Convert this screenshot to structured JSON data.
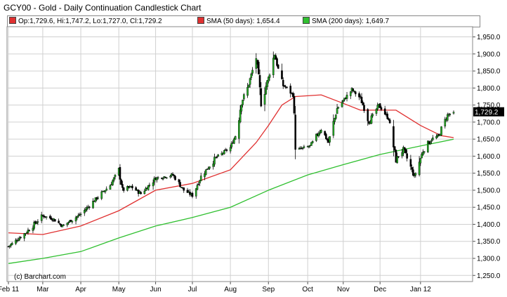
{
  "chart_data": {
    "type": "candlestick",
    "title": "GCY00 - Gold - Daily Continuation Candlestick Chart",
    "ohlc_label": "Op:1,729.6, Hi:1,747.2, Lo:1,727.0, Cl:1,729.2",
    "last_price_label": "1,729.2",
    "last_close": 1729.2,
    "xlabel": "",
    "ylabel": "",
    "ylim": [
      1232,
      1980
    ],
    "y_ticks": [
      {
        "value": 1250,
        "label": "1,250.0"
      },
      {
        "value": 1300,
        "label": "1,300.0"
      },
      {
        "value": 1350,
        "label": "1,350.0"
      },
      {
        "value": 1400,
        "label": "1,400.0"
      },
      {
        "value": 1450,
        "label": "1,450.0"
      },
      {
        "value": 1500,
        "label": "1,500.0"
      },
      {
        "value": 1550,
        "label": "1,550.0"
      },
      {
        "value": 1600,
        "label": "1,600.0"
      },
      {
        "value": 1650,
        "label": "1,650.0"
      },
      {
        "value": 1700,
        "label": "1,700.0"
      },
      {
        "value": 1750,
        "label": "1,750.0"
      },
      {
        "value": 1800,
        "label": "1,800.0"
      },
      {
        "value": 1850,
        "label": "1,850.0"
      },
      {
        "value": 1900,
        "label": "1,900.0"
      },
      {
        "value": 1950,
        "label": "1,950.0"
      }
    ],
    "x_ticks": [
      {
        "date": "2011-02-01",
        "label": "Feb 11"
      },
      {
        "date": "2011-03-01",
        "label": "Mar"
      },
      {
        "date": "2011-04-01",
        "label": "Apr"
      },
      {
        "date": "2011-05-02",
        "label": "May"
      },
      {
        "date": "2011-06-01",
        "label": "Jun"
      },
      {
        "date": "2011-07-01",
        "label": "Jul"
      },
      {
        "date": "2011-08-01",
        "label": "Aug"
      },
      {
        "date": "2011-09-01",
        "label": "Sep"
      },
      {
        "date": "2011-10-03",
        "label": "Oct"
      },
      {
        "date": "2011-11-01",
        "label": "Nov"
      },
      {
        "date": "2011-12-01",
        "label": "Dec"
      },
      {
        "date": "2012-01-03",
        "label": "Jan 12"
      }
    ],
    "price_path": [
      {
        "date": "2011-02-01",
        "close": 1335
      },
      {
        "date": "2011-02-15",
        "close": 1375
      },
      {
        "date": "2011-03-01",
        "close": 1425
      },
      {
        "date": "2011-03-10",
        "close": 1415
      },
      {
        "date": "2011-03-17",
        "close": 1395
      },
      {
        "date": "2011-04-01",
        "close": 1430
      },
      {
        "date": "2011-04-15",
        "close": 1480
      },
      {
        "date": "2011-04-25",
        "close": 1515
      },
      {
        "date": "2011-05-02",
        "close": 1560
      },
      {
        "date": "2011-05-05",
        "close": 1500
      },
      {
        "date": "2011-05-12",
        "close": 1510
      },
      {
        "date": "2011-05-20",
        "close": 1490
      },
      {
        "date": "2011-06-01",
        "close": 1535
      },
      {
        "date": "2011-06-15",
        "close": 1545
      },
      {
        "date": "2011-06-24",
        "close": 1500
      },
      {
        "date": "2011-07-01",
        "close": 1485
      },
      {
        "date": "2011-07-08",
        "close": 1540
      },
      {
        "date": "2011-07-20",
        "close": 1595
      },
      {
        "date": "2011-08-01",
        "close": 1625
      },
      {
        "date": "2011-08-05",
        "close": 1660
      },
      {
        "date": "2011-08-10",
        "close": 1760
      },
      {
        "date": "2011-08-15",
        "close": 1800
      },
      {
        "date": "2011-08-22",
        "close": 1890
      },
      {
        "date": "2011-08-26",
        "close": 1760
      },
      {
        "date": "2011-09-01",
        "close": 1830
      },
      {
        "date": "2011-09-06",
        "close": 1900
      },
      {
        "date": "2011-09-12",
        "close": 1810
      },
      {
        "date": "2011-09-16",
        "close": 1800
      },
      {
        "date": "2011-09-21",
        "close": 1780
      },
      {
        "date": "2011-09-23",
        "close": 1640
      },
      {
        "date": "2011-09-26",
        "close": 1620
      },
      {
        "date": "2011-10-05",
        "close": 1630
      },
      {
        "date": "2011-10-14",
        "close": 1680
      },
      {
        "date": "2011-10-20",
        "close": 1640
      },
      {
        "date": "2011-10-27",
        "close": 1740
      },
      {
        "date": "2011-11-08",
        "close": 1795
      },
      {
        "date": "2011-11-15",
        "close": 1770
      },
      {
        "date": "2011-11-22",
        "close": 1700
      },
      {
        "date": "2011-11-30",
        "close": 1750
      },
      {
        "date": "2011-12-08",
        "close": 1710
      },
      {
        "date": "2011-12-14",
        "close": 1590
      },
      {
        "date": "2011-12-20",
        "close": 1620
      },
      {
        "date": "2011-12-29",
        "close": 1540
      },
      {
        "date": "2012-01-05",
        "close": 1615
      },
      {
        "date": "2012-01-12",
        "close": 1650
      },
      {
        "date": "2012-01-18",
        "close": 1660
      },
      {
        "date": "2012-01-20",
        "close": 1680
      },
      {
        "date": "2012-01-25",
        "close": 1720
      },
      {
        "date": "2012-01-30",
        "close": 1729.2
      }
    ],
    "series": [
      {
        "name": "SMA (50 days): 1,654.4",
        "color": "#e03030",
        "points": [
          {
            "date": "2011-02-01",
            "value": 1375
          },
          {
            "date": "2011-03-01",
            "value": 1370
          },
          {
            "date": "2011-04-01",
            "value": 1395
          },
          {
            "date": "2011-05-02",
            "value": 1440
          },
          {
            "date": "2011-06-01",
            "value": 1500
          },
          {
            "date": "2011-07-01",
            "value": 1520
          },
          {
            "date": "2011-08-01",
            "value": 1560
          },
          {
            "date": "2011-08-22",
            "value": 1640
          },
          {
            "date": "2011-09-01",
            "value": 1690
          },
          {
            "date": "2011-09-12",
            "value": 1750
          },
          {
            "date": "2011-09-23",
            "value": 1775
          },
          {
            "date": "2011-10-14",
            "value": 1780
          },
          {
            "date": "2011-11-01",
            "value": 1755
          },
          {
            "date": "2011-11-15",
            "value": 1735
          },
          {
            "date": "2011-12-01",
            "value": 1735
          },
          {
            "date": "2011-12-14",
            "value": 1735
          },
          {
            "date": "2012-01-03",
            "value": 1690
          },
          {
            "date": "2012-01-20",
            "value": 1660
          },
          {
            "date": "2012-01-30",
            "value": 1654.4
          }
        ]
      },
      {
        "name": "SMA (200 days): 1,649.7",
        "color": "#30c030",
        "points": [
          {
            "date": "2011-02-01",
            "value": 1285
          },
          {
            "date": "2011-03-01",
            "value": 1300
          },
          {
            "date": "2011-04-01",
            "value": 1320
          },
          {
            "date": "2011-05-02",
            "value": 1360
          },
          {
            "date": "2011-06-01",
            "value": 1395
          },
          {
            "date": "2011-07-01",
            "value": 1420
          },
          {
            "date": "2011-08-01",
            "value": 1450
          },
          {
            "date": "2011-09-01",
            "value": 1500
          },
          {
            "date": "2011-10-03",
            "value": 1545
          },
          {
            "date": "2011-11-01",
            "value": 1575
          },
          {
            "date": "2011-12-01",
            "value": 1605
          },
          {
            "date": "2012-01-03",
            "value": 1630
          },
          {
            "date": "2012-01-30",
            "value": 1649.7
          }
        ]
      }
    ],
    "grid": true,
    "legend": "top"
  },
  "copyright": "(c) Barchart.com"
}
